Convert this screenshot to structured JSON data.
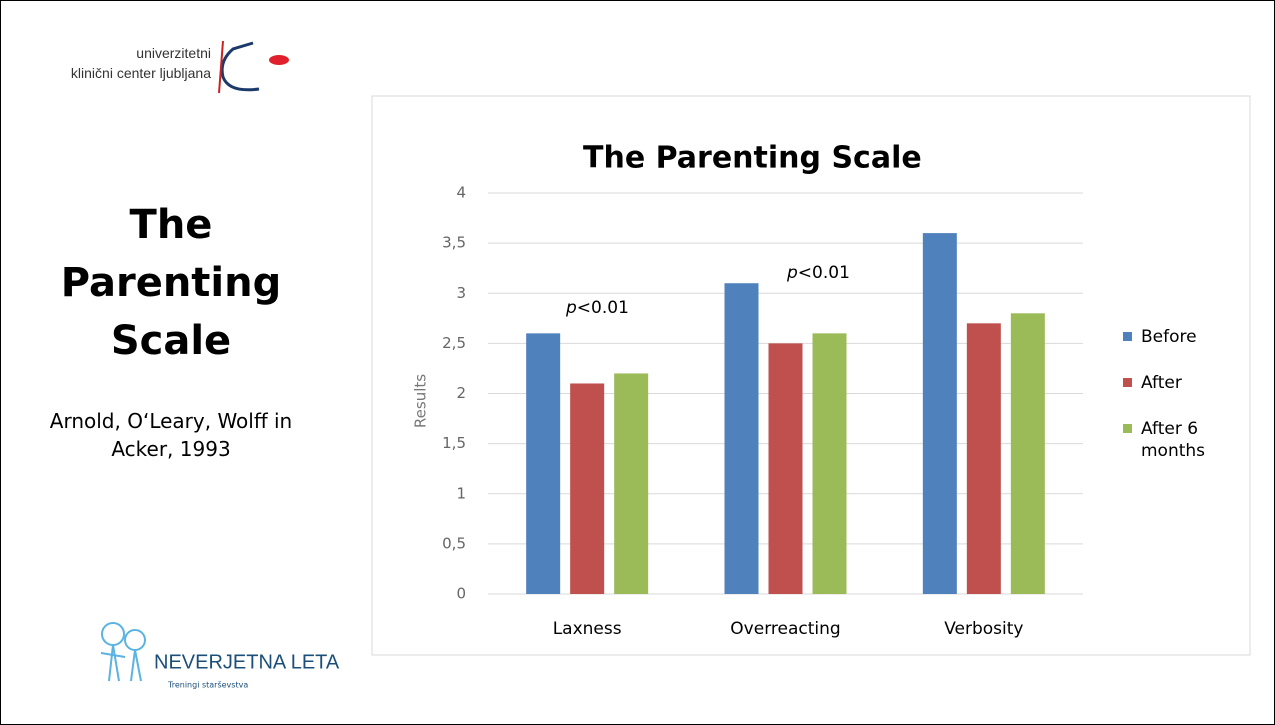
{
  "slide": {
    "title": "The Parenting Scale",
    "subtitle": "Arnold, O‘Leary, Wolff in Acker, 1993"
  },
  "logos": {
    "line1": "univerzitetni",
    "line2": "klinični center ljubljana",
    "brand": "NEVERJETNA LETA",
    "tagline": "Treningi starševstva"
  },
  "chart_data": {
    "type": "bar",
    "title": "The Parenting Scale",
    "y_label": "Results",
    "categories": [
      "Laxness",
      "Overreacting",
      "Verbosity"
    ],
    "series": [
      {
        "name": "Before",
        "color": "#4f81bd",
        "values": [
          2.6,
          3.1,
          3.6
        ]
      },
      {
        "name": "After",
        "color": "#c0504d",
        "values": [
          2.1,
          2.5,
          2.7
        ]
      },
      {
        "name": "After 6 months",
        "color": "#9bbb59",
        "values": [
          2.2,
          2.6,
          2.8
        ]
      }
    ],
    "ylim": [
      0,
      4
    ],
    "yticks": [
      0,
      {
        "value": 0.5,
        "label": "0,5"
      },
      1,
      {
        "value": 1.5,
        "label": "1,5"
      },
      2,
      {
        "value": 2.5,
        "label": "2,5"
      },
      3,
      {
        "value": 3.5,
        "label": "3,5"
      },
      4
    ],
    "grid": true,
    "legend": "right",
    "annotations": [
      "p<0.01",
      "p<0.01"
    ]
  }
}
